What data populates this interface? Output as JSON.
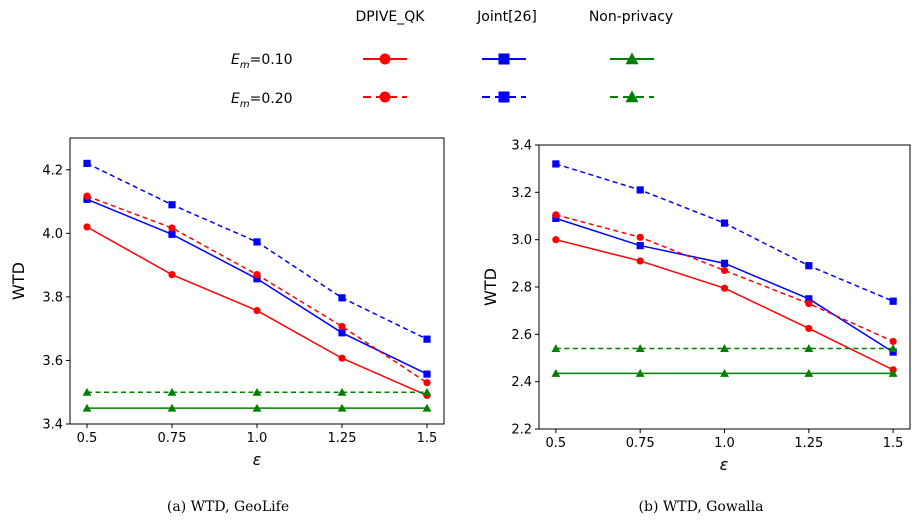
{
  "legend": {
    "columns": [
      "DPIVE_QK",
      "Joint[26]",
      "Non-privacy"
    ],
    "rows": [
      "E_m=0.10",
      "E_m=0.20"
    ],
    "row_symbol": "E",
    "row_subscript": "m",
    "row_values": [
      "=0.10",
      "=0.20"
    ],
    "colors": {
      "DPIVE_QK": "#ff0000",
      "Joint[26]": "#0000ff",
      "Non-privacy": "#008000"
    },
    "markers": {
      "DPIVE_QK": "circle",
      "Joint[26]": "square",
      "Non-privacy": "triangle"
    },
    "line_styles": {
      "E_m=0.10": "solid",
      "E_m=0.20": "dashed"
    }
  },
  "chart_data": [
    {
      "type": "line",
      "caption": "(a)  WTD, GeoLife",
      "xlabel": "ε",
      "ylabel": "WTD",
      "x": [
        0.5,
        0.75,
        1.0,
        1.25,
        1.5
      ],
      "x_tick_labels": [
        "0.5",
        "0.75",
        "1.0",
        "1.25",
        "1.5"
      ],
      "xlim": [
        0.45,
        1.55
      ],
      "ylim": [
        3.4,
        4.3
      ],
      "y_ticks": [
        3.4,
        3.6,
        3.8,
        4.0,
        4.2
      ],
      "y_tick_labels": [
        "3.4",
        "3.6",
        "3.8",
        "4.0",
        "4.2"
      ],
      "series": [
        {
          "name": "DPIVE_QK, E_m=0.10",
          "method": "DPIVE_QK",
          "style": "solid",
          "values": [
            4.02,
            3.87,
            3.757,
            3.607,
            3.49
          ]
        },
        {
          "name": "Joint[26], E_m=0.10",
          "method": "Joint[26]",
          "style": "solid",
          "values": [
            4.107,
            3.997,
            3.857,
            3.687,
            3.557
          ]
        },
        {
          "name": "Non-privacy, E_m=0.10",
          "method": "Non-privacy",
          "style": "solid",
          "values": [
            3.45,
            3.45,
            3.45,
            3.45,
            3.45
          ]
        },
        {
          "name": "DPIVE_QK, E_m=0.20",
          "method": "DPIVE_QK",
          "style": "dashed",
          "values": [
            4.117,
            4.017,
            3.87,
            3.707,
            3.53
          ]
        },
        {
          "name": "Joint[26], E_m=0.20",
          "method": "Joint[26]",
          "style": "dashed",
          "values": [
            4.22,
            4.09,
            3.973,
            3.797,
            3.667
          ]
        },
        {
          "name": "Non-privacy, E_m=0.20",
          "method": "Non-privacy",
          "style": "dashed",
          "values": [
            3.5,
            3.5,
            3.5,
            3.5,
            3.5
          ]
        }
      ]
    },
    {
      "type": "line",
      "caption": "(b)  WTD, Gowalla",
      "xlabel": "ε",
      "ylabel": "WTD",
      "x": [
        0.5,
        0.75,
        1.0,
        1.25,
        1.5
      ],
      "x_tick_labels": [
        "0.5",
        "0.75",
        "1.0",
        "1.25",
        "1.5"
      ],
      "xlim": [
        0.45,
        1.55
      ],
      "ylim": [
        2.2,
        3.4
      ],
      "y_ticks": [
        2.2,
        2.4,
        2.6,
        2.8,
        3.0,
        3.2,
        3.4
      ],
      "y_tick_labels": [
        "2.2",
        "2.4",
        "2.6",
        "2.8",
        "3.0",
        "3.2",
        "3.4"
      ],
      "series": [
        {
          "name": "DPIVE_QK, E_m=0.10",
          "method": "DPIVE_QK",
          "style": "solid",
          "values": [
            3.0,
            2.91,
            2.795,
            2.625,
            2.45
          ]
        },
        {
          "name": "Joint[26], E_m=0.10",
          "method": "Joint[26]",
          "style": "solid",
          "values": [
            3.09,
            2.975,
            2.9,
            2.75,
            2.525
          ]
        },
        {
          "name": "Non-privacy, E_m=0.10",
          "method": "Non-privacy",
          "style": "solid",
          "values": [
            2.435,
            2.435,
            2.435,
            2.435,
            2.435
          ]
        },
        {
          "name": "DPIVE_QK, E_m=0.20",
          "method": "DPIVE_QK",
          "style": "dashed",
          "values": [
            3.105,
            3.01,
            2.87,
            2.73,
            2.57
          ]
        },
        {
          "name": "Joint[26], E_m=0.20",
          "method": "Joint[26]",
          "style": "dashed",
          "values": [
            3.32,
            3.21,
            3.07,
            2.89,
            2.74
          ]
        },
        {
          "name": "Non-privacy, E_m=0.20",
          "method": "Non-privacy",
          "style": "dashed",
          "values": [
            2.54,
            2.54,
            2.54,
            2.54,
            2.54
          ]
        }
      ]
    }
  ]
}
